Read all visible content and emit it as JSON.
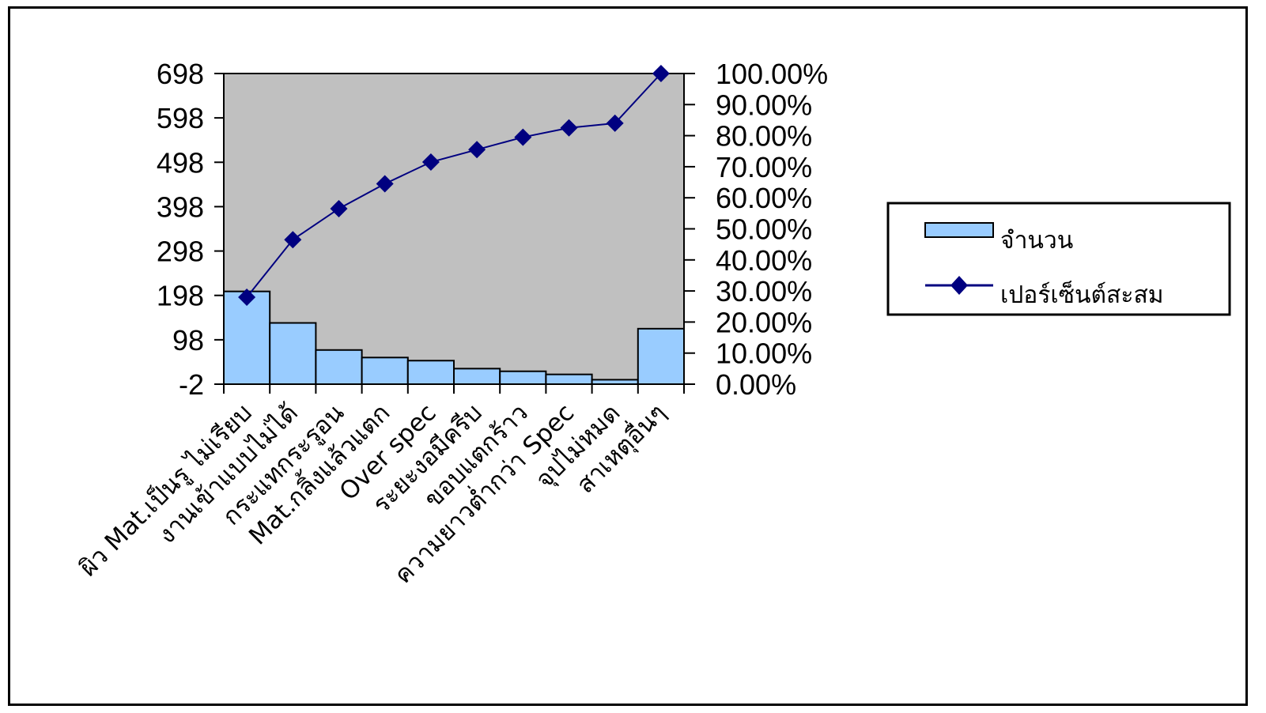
{
  "chart_data": {
    "type": "bar",
    "categories": [
      "ผิว Mat.เป็นรู ไม่เรียบ",
      "งานเข้าแบบไม่ได้",
      "กระแทกระรูอน",
      "Mat.กลิ้งแล้วแตก",
      "Over spec",
      "ระยะงอมีครีบ",
      "ขอบแตกร้าว",
      "ความยาวต่ำกว่า Spec",
      "จุปไม่หมด",
      "สาเหตุอื่นๆ"
    ],
    "series": [
      {
        "name": "จำนวน",
        "type": "bar",
        "axis": "left",
        "values": [
          207,
          136,
          75,
          58,
          51,
          33,
          27,
          20,
          8,
          123
        ],
        "color": "#99ccff"
      },
      {
        "name": "เปอร์เซ็นต์สะสม",
        "type": "line",
        "axis": "right",
        "values": [
          28.0,
          46.5,
          56.5,
          64.5,
          71.5,
          75.5,
          79.5,
          82.5,
          84.0,
          100.0
        ],
        "color": "#000080"
      }
    ],
    "y_left": {
      "ticks": [
        "698",
        "598",
        "498",
        "398",
        "298",
        "198",
        "98",
        "-2"
      ],
      "range": [
        -2,
        698
      ]
    },
    "y_right": {
      "ticks": [
        "100.00%",
        "90.00%",
        "80.00%",
        "70.00%",
        "60.00%",
        "50.00%",
        "40.00%",
        "30.00%",
        "20.00%",
        "10.00%",
        "0.00%"
      ],
      "range": [
        0,
        100
      ]
    },
    "plot_background": "#c0c0c0",
    "grid": false,
    "legend_position": "right"
  }
}
